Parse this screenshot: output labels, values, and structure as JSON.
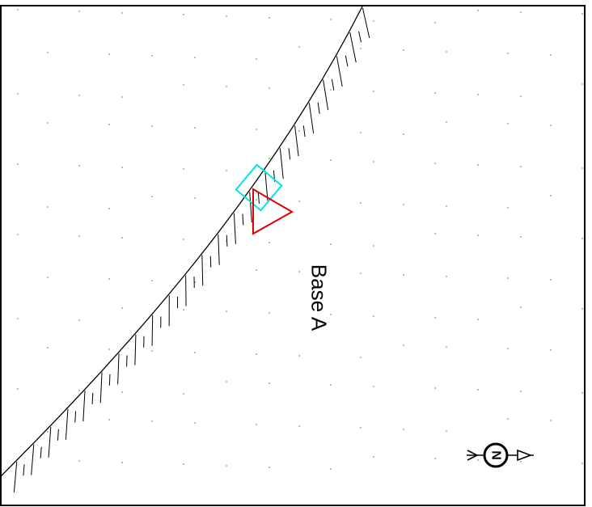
{
  "map": {
    "label": "Base A",
    "compass_letter": "N",
    "colors": {
      "frame": "#000000",
      "curve": "#000000",
      "ticks": "#000000",
      "dots": "#2ecc40",
      "square": "#00e5e5",
      "triangle": "#e00000",
      "label": "#000000"
    },
    "icons": {
      "square": "cyan-square-marker",
      "triangle": "red-triangle-marker",
      "compass": "north-arrow-icon"
    }
  }
}
